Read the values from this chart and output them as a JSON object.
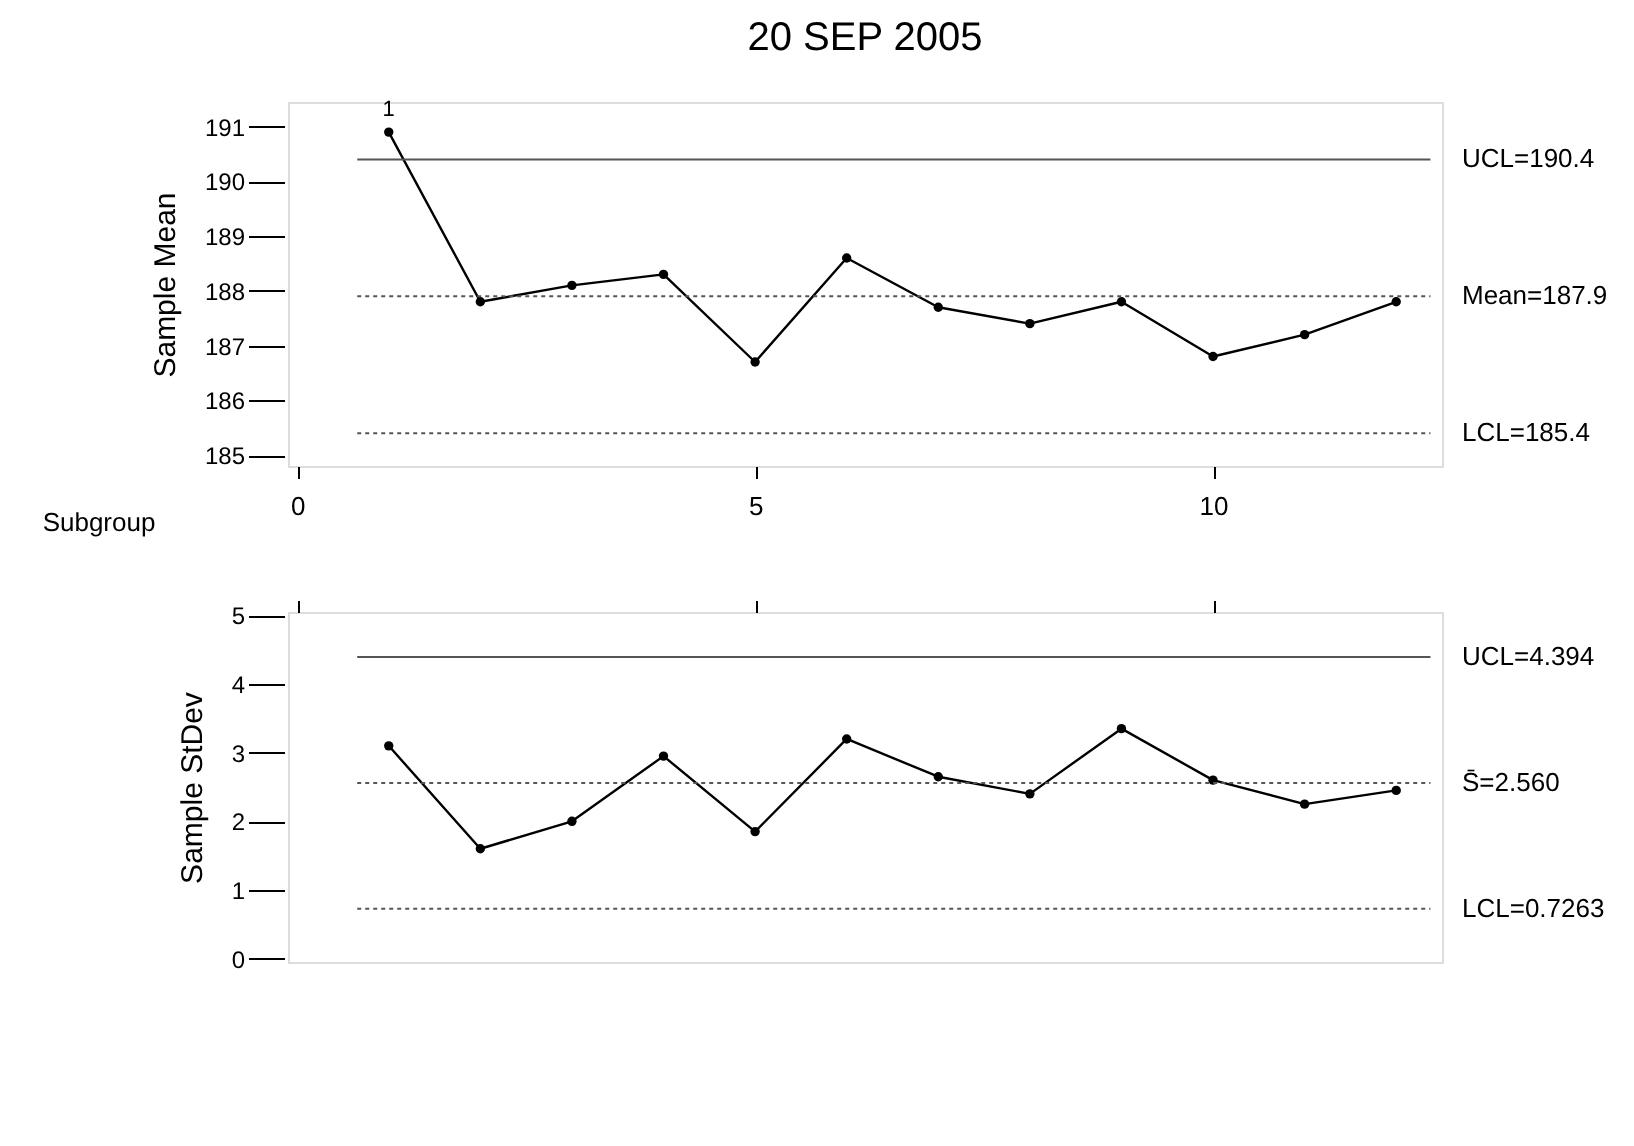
{
  "chart_data": [
    {
      "type": "line",
      "title": "20 SEP 2005",
      "xlabel": "Subgroup",
      "ylabel": "Sample Mean",
      "x": [
        1,
        2,
        3,
        4,
        5,
        6,
        7,
        8,
        9,
        10,
        11,
        12
      ],
      "series": [
        {
          "color": "#000000",
          "values": [
            190.9,
            187.8,
            188.1,
            188.3,
            186.7,
            188.6,
            187.7,
            187.4,
            187.8,
            186.8,
            187.2,
            187.8
          ]
        }
      ],
      "marker": "circle",
      "line_style": "solid",
      "grid": false,
      "xlim": [
        -0.1,
        12.5
      ],
      "xticks": [
        0,
        5,
        10
      ],
      "ylim": [
        184.8,
        191.45
      ],
      "yticks": [
        185,
        186,
        187,
        188,
        189,
        190,
        191
      ],
      "ref_lines": [
        {
          "axis": "y",
          "value": 190.4,
          "label": "UCL=190.4",
          "line_style": "solid",
          "color": "#555555"
        },
        {
          "axis": "y",
          "value": 187.9,
          "label": "Mean=187.9",
          "line_style": "dotted",
          "color": "#555555"
        },
        {
          "axis": "y",
          "value": 185.4,
          "label": "LCL=185.4",
          "line_style": "dotted",
          "color": "#555555"
        }
      ],
      "annotations": [
        "1"
      ]
    },
    {
      "type": "line",
      "ylabel": "Sample StDev",
      "x": [
        1,
        2,
        3,
        4,
        5,
        6,
        7,
        8,
        9,
        10,
        11,
        12
      ],
      "series": [
        {
          "color": "#000000",
          "values": [
            3.1,
            1.6,
            2.0,
            2.95,
            1.85,
            3.2,
            2.65,
            2.4,
            3.35,
            2.6,
            2.25,
            2.45
          ]
        }
      ],
      "marker": "circle",
      "line_style": "solid",
      "grid": false,
      "tick_labels": "y",
      "xlim": [
        -0.1,
        12.5
      ],
      "xticks": [
        0,
        5,
        10
      ],
      "ylim": [
        -0.05,
        5.05
      ],
      "yticks": [
        0,
        1,
        2,
        3,
        4,
        5
      ],
      "ref_lines": [
        {
          "axis": "y",
          "value": 4.394,
          "label": "UCL=4.394",
          "line_style": "solid",
          "color": "#555555"
        },
        {
          "axis": "y",
          "value": 2.56,
          "label": "S̄=2.560",
          "line_style": "dotted",
          "color": "#555555"
        },
        {
          "axis": "y",
          "value": 0.7263,
          "label": "LCL=0.7263",
          "line_style": "dotted",
          "color": "#555555"
        }
      ]
    }
  ]
}
